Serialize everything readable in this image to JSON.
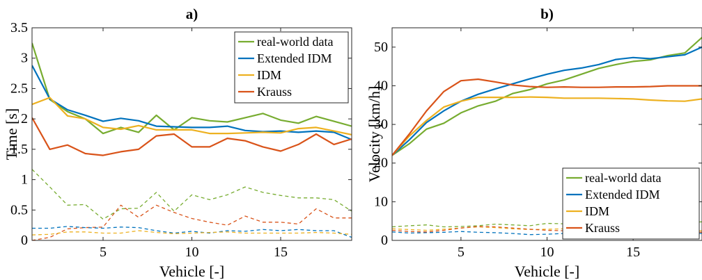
{
  "chart_data": [
    {
      "type": "line",
      "title": "a)",
      "xlabel": "Vehicle [-]",
      "ylabel": "Time [s]",
      "xlim": [
        1,
        19
      ],
      "ylim": [
        0,
        3.5
      ],
      "xticks": [
        5,
        10,
        15
      ],
      "yticks": [
        0,
        0.5,
        1,
        1.5,
        2,
        2.5,
        3,
        3.5
      ],
      "ytick_labels": [
        "0",
        "0.5",
        "1",
        "1.5",
        "2",
        "2.5",
        "3",
        "3.5"
      ],
      "grid": false,
      "legend_position": "top-right",
      "x": [
        1,
        2,
        3,
        4,
        5,
        6,
        7,
        8,
        9,
        10,
        11,
        12,
        13,
        14,
        15,
        16,
        17,
        18,
        19
      ],
      "series": [
        {
          "name": "real-world data",
          "color": "#77AC30",
          "style": "solid",
          "values": [
            3.25,
            2.32,
            2.12,
            2.0,
            1.76,
            1.86,
            1.78,
            2.06,
            1.82,
            2.02,
            1.97,
            1.95,
            2.02,
            2.09,
            1.98,
            1.93,
            2.04,
            1.96,
            1.88
          ]
        },
        {
          "name": "Extended IDM",
          "color": "#0072BD",
          "style": "solid",
          "values": [
            2.88,
            2.33,
            2.15,
            2.06,
            1.96,
            2.01,
            1.97,
            1.88,
            1.87,
            1.86,
            1.86,
            1.88,
            1.81,
            1.79,
            1.8,
            1.78,
            1.8,
            1.78,
            1.66
          ]
        },
        {
          "name": "IDM",
          "color": "#EDB120",
          "style": "solid",
          "values": [
            2.24,
            2.35,
            2.05,
            2.0,
            1.86,
            1.83,
            1.89,
            1.82,
            1.82,
            1.82,
            1.76,
            1.76,
            1.77,
            1.78,
            1.77,
            1.84,
            1.86,
            1.8,
            1.74
          ]
        },
        {
          "name": "Krauss",
          "color": "#D95319",
          "style": "solid",
          "values": [
            2.02,
            1.5,
            1.57,
            1.43,
            1.4,
            1.46,
            1.5,
            1.72,
            1.75,
            1.54,
            1.54,
            1.68,
            1.64,
            1.54,
            1.47,
            1.58,
            1.75,
            1.58,
            1.67
          ]
        },
        {
          "color": "#77AC30",
          "style": "dashed",
          "values": [
            1.17,
            0.88,
            0.58,
            0.59,
            0.35,
            0.52,
            0.53,
            0.79,
            0.48,
            0.75,
            0.67,
            0.75,
            0.88,
            0.79,
            0.74,
            0.7,
            0.7,
            0.67,
            0.48
          ]
        },
        {
          "color": "#D95319",
          "style": "dashed",
          "values": [
            0.0,
            0.05,
            0.19,
            0.21,
            0.22,
            0.58,
            0.38,
            0.58,
            0.46,
            0.36,
            0.3,
            0.25,
            0.4,
            0.3,
            0.3,
            0.27,
            0.52,
            0.37,
            0.37
          ]
        },
        {
          "color": "#0072BD",
          "style": "dashed",
          "values": [
            0.2,
            0.2,
            0.23,
            0.21,
            0.2,
            0.22,
            0.21,
            0.16,
            0.12,
            0.15,
            0.12,
            0.16,
            0.15,
            0.18,
            0.16,
            0.18,
            0.16,
            0.16,
            0.05
          ]
        },
        {
          "color": "#EDB120",
          "style": "dashed",
          "values": [
            0.09,
            0.1,
            0.14,
            0.14,
            0.12,
            0.12,
            0.16,
            0.13,
            0.11,
            0.12,
            0.13,
            0.14,
            0.12,
            0.12,
            0.12,
            0.12,
            0.13,
            0.12,
            0.1
          ]
        }
      ]
    },
    {
      "type": "line",
      "title": "b)",
      "xlabel": "Vehicle [-]",
      "ylabel": "Velocity [km/h]",
      "xlim": [
        1,
        19
      ],
      "ylim": [
        0,
        55
      ],
      "xticks": [
        5,
        10,
        15
      ],
      "yticks": [
        0,
        10,
        20,
        30,
        40,
        50
      ],
      "ytick_labels": [
        "0",
        "10",
        "20",
        "30",
        "40",
        "50"
      ],
      "grid": false,
      "legend_position": "lower-right",
      "x": [
        1,
        2,
        3,
        4,
        5,
        6,
        7,
        8,
        9,
        10,
        11,
        12,
        13,
        14,
        15,
        16,
        17,
        18,
        19
      ],
      "series": [
        {
          "name": "real-world data",
          "color": "#77AC30",
          "style": "solid",
          "values": [
            22.0,
            25.0,
            28.8,
            30.3,
            33.0,
            34.8,
            36.0,
            38.0,
            39.0,
            40.5,
            41.5,
            43.0,
            44.5,
            45.5,
            46.3,
            46.7,
            47.8,
            48.5,
            52.5
          ]
        },
        {
          "name": "Extended IDM",
          "color": "#0072BD",
          "style": "solid",
          "values": [
            22.0,
            26.0,
            30.5,
            33.5,
            36.0,
            37.8,
            39.2,
            40.5,
            41.8,
            43.0,
            44.0,
            44.6,
            45.5,
            46.8,
            47.3,
            47.0,
            47.5,
            48.0,
            50.0
          ]
        },
        {
          "name": "IDM",
          "color": "#EDB120",
          "style": "solid",
          "values": [
            22.0,
            27.0,
            31.0,
            34.5,
            36.0,
            37.0,
            37.0,
            37.0,
            37.1,
            37.0,
            36.8,
            36.8,
            36.8,
            36.7,
            36.6,
            36.3,
            36.1,
            36.0,
            36.6
          ]
        },
        {
          "name": "Krauss",
          "color": "#D95319",
          "style": "solid",
          "values": [
            22.0,
            27.5,
            33.5,
            38.5,
            41.3,
            41.7,
            41.0,
            40.2,
            39.8,
            39.6,
            39.7,
            39.6,
            39.6,
            39.7,
            39.7,
            39.8,
            40.0,
            40.0,
            40.0
          ]
        },
        {
          "color": "#77AC30",
          "style": "dashed",
          "values": [
            3.5,
            3.8,
            4.0,
            3.5,
            3.6,
            3.8,
            4.2,
            4.0,
            3.8,
            4.4,
            4.3,
            4.1,
            4.3,
            4.5,
            4.3,
            4.2,
            4.9,
            4.6,
            4.8
          ]
        },
        {
          "color": "#0072BD",
          "style": "dashed",
          "values": [
            2.2,
            1.9,
            2.0,
            2.1,
            2.3,
            2.1,
            2.0,
            1.8,
            1.5,
            1.6,
            1.8,
            2.0,
            2.0,
            2.0,
            1.9,
            1.8,
            1.8,
            1.9,
            1.8
          ]
        },
        {
          "color": "#EDB120",
          "style": "dashed",
          "values": [
            3.0,
            2.8,
            2.6,
            2.9,
            3.2,
            3.5,
            3.3,
            3.0,
            2.8,
            2.9,
            3.0,
            2.9,
            2.8,
            2.7,
            2.6,
            2.6,
            2.5,
            2.6,
            2.5
          ]
        },
        {
          "color": "#D95319",
          "style": "dashed",
          "values": [
            2.6,
            2.3,
            2.2,
            2.6,
            3.2,
            3.6,
            3.5,
            3.2,
            2.9,
            2.6,
            2.5,
            2.4,
            2.4,
            2.3,
            2.3,
            2.3,
            2.2,
            2.2,
            2.1
          ]
        }
      ]
    }
  ]
}
